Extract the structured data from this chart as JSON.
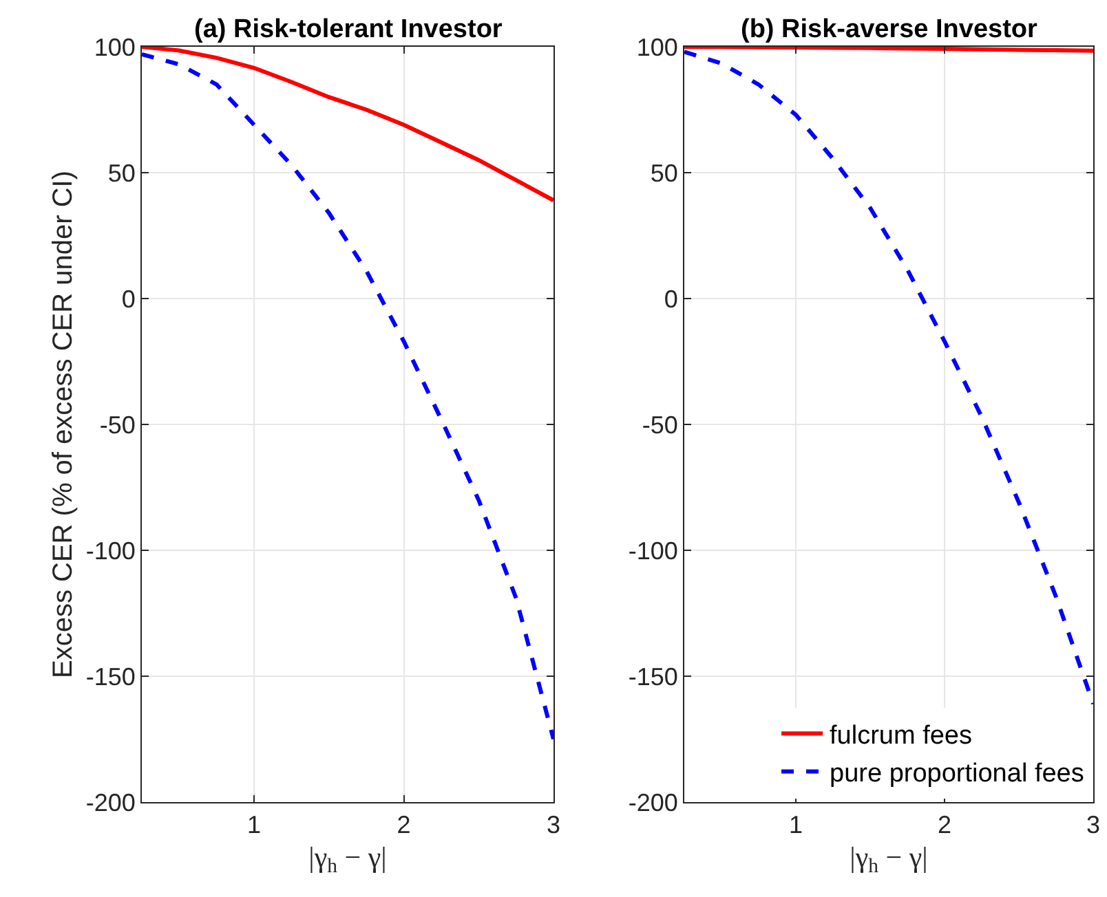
{
  "chart_data": [
    {
      "type": "line",
      "title": "(a) Risk-tolerant Investor",
      "xlabel": "|γ$_{h}$ − γ|",
      "ylabel": "Excess CER (% of excess CER under CI)",
      "xlim": [
        0.25,
        3
      ],
      "xticks": [
        1,
        2,
        3
      ],
      "ylim": [
        -200,
        100
      ],
      "yticks": [
        -200,
        -150,
        -100,
        -50,
        0,
        50,
        100
      ],
      "grid": true,
      "legend": false,
      "x": [
        0.25,
        0.5,
        0.75,
        1.0,
        1.25,
        1.5,
        1.75,
        2.0,
        2.25,
        2.5,
        2.75,
        3.0
      ],
      "series": [
        {
          "color": "#ff0000",
          "line_style": "solid",
          "values": [
            100,
            98.5,
            95.6,
            91.6,
            86,
            80,
            75,
            69,
            62,
            55,
            47,
            39
          ]
        },
        {
          "color": "#0000ff",
          "line_style": "dashed",
          "values": [
            97,
            93,
            85,
            69,
            53,
            34,
            11,
            -17,
            -48,
            -80,
            -119,
            -175
          ]
        }
      ]
    },
    {
      "type": "line",
      "title": "(b) Risk-averse Investor",
      "xlabel": "|γ$_{h}$ − γ|",
      "xlim": [
        0.25,
        3
      ],
      "xticks": [
        1,
        2,
        3
      ],
      "ylim": [
        -200,
        100
      ],
      "yticks": [
        -200,
        -150,
        -100,
        -50,
        0,
        50,
        100
      ],
      "grid": true,
      "legend": "bottom right",
      "x": [
        0.25,
        0.5,
        0.75,
        1.0,
        1.25,
        1.5,
        1.75,
        2.0,
        2.25,
        2.5,
        2.75,
        3.0
      ],
      "series": [
        {
          "name": "fulcrum fees",
          "color": "#ff0000",
          "line_style": "solid",
          "values": [
            100,
            99.9,
            99.8,
            99.7,
            99.6,
            99.5,
            99.3,
            99.2,
            99.0,
            98.8,
            98.6,
            98.4
          ]
        },
        {
          "name": "pure proportional fees",
          "color": "#0000ff",
          "line_style": "dashed",
          "values": [
            98,
            93.4,
            85,
            73,
            55.5,
            36,
            11.5,
            -17,
            -47,
            -81,
            -118.5,
            -161
          ]
        }
      ]
    }
  ]
}
